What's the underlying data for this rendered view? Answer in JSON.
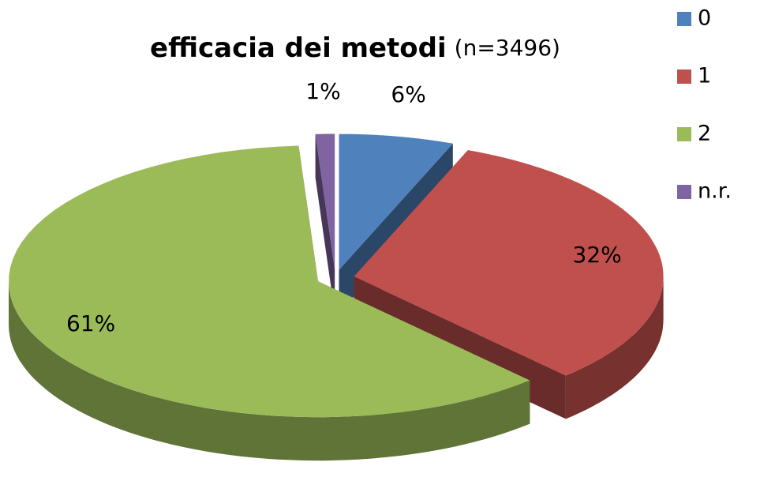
{
  "chart_data": {
    "type": "pie",
    "title": "efficacia dei metodi",
    "subtitle": "(n=3496)",
    "categories": [
      "0",
      "1",
      "2",
      "n.r."
    ],
    "values": [
      6,
      32,
      61,
      1
    ],
    "value_labels": [
      "6%",
      "32%",
      "61%",
      "1%"
    ],
    "colors": [
      "#4f81bd",
      "#c0504d",
      "#9bbb59",
      "#8064a2"
    ],
    "legend": "right"
  }
}
